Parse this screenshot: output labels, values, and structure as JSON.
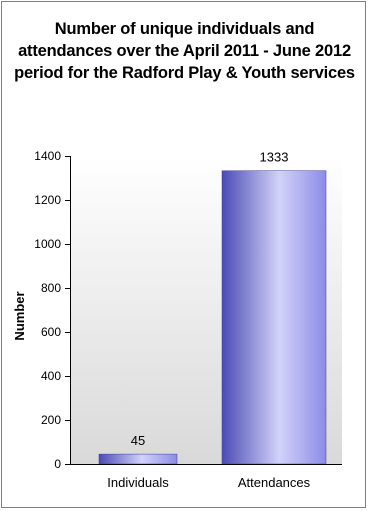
{
  "chart_data": {
    "type": "bar",
    "title": "Number of unique individuals and attendances over the April 2011 - June 2012 period for the Radford Play & Youth services",
    "xlabel": "",
    "ylabel": "Number",
    "categories": [
      "Individuals",
      "Attendances"
    ],
    "values": [
      45,
      1333
    ],
    "data_labels": [
      "45",
      "1333"
    ],
    "ylim": [
      0,
      1400
    ],
    "yticks": [
      0,
      200,
      400,
      600,
      800,
      1000,
      1200,
      1400
    ],
    "grid": false,
    "legend": "none",
    "colors": {
      "bar": "#8c8ce6",
      "bar_dark": "#4b4bb4",
      "bar_light": "#d2d2fa"
    }
  }
}
